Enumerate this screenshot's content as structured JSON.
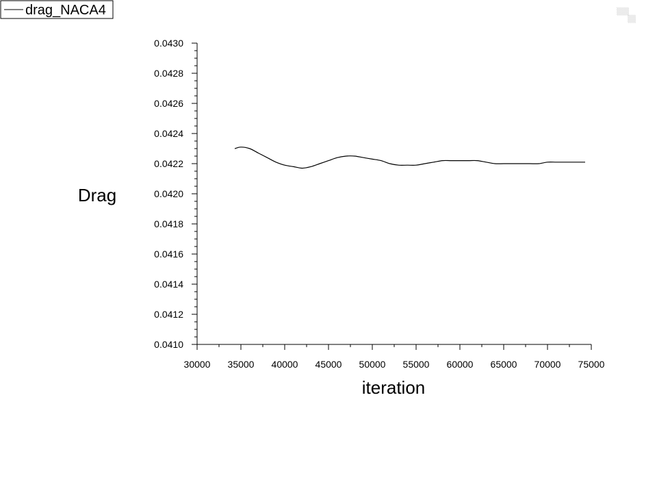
{
  "chart_data": {
    "type": "line",
    "title": "",
    "xlabel": "iteration",
    "ylabel": "Drag",
    "xlim": [
      30000,
      75000
    ],
    "ylim": [
      0.041,
      0.043
    ],
    "x_ticks": [
      "30000",
      "35000",
      "40000",
      "45000",
      "50000",
      "55000",
      "60000",
      "65000",
      "70000",
      "75000"
    ],
    "y_ticks": [
      "0.0410",
      "0.0412",
      "0.0414",
      "0.0416",
      "0.0418",
      "0.0420",
      "0.0422",
      "0.0424",
      "0.0426",
      "0.0428",
      "0.0430"
    ],
    "grid": false,
    "legend_position": "top-left",
    "series": [
      {
        "name": "drag_NACA4",
        "color": "#000000",
        "x": [
          34300,
          35000,
          36000,
          37000,
          38000,
          39000,
          40000,
          41000,
          42000,
          43000,
          44000,
          45000,
          46000,
          47000,
          48000,
          49000,
          50000,
          51000,
          52000,
          53000,
          54000,
          55000,
          56000,
          57000,
          58000,
          59000,
          60000,
          61000,
          62000,
          63000,
          64000,
          65000,
          66000,
          67000,
          68000,
          69000,
          70000,
          71000,
          72000,
          73000,
          74300
        ],
        "y": [
          0.0423,
          0.04231,
          0.0423,
          0.04227,
          0.04224,
          0.04221,
          0.04219,
          0.04218,
          0.04217,
          0.04218,
          0.0422,
          0.04222,
          0.04224,
          0.04225,
          0.04225,
          0.04224,
          0.04223,
          0.04222,
          0.0422,
          0.04219,
          0.04219,
          0.04219,
          0.0422,
          0.04221,
          0.04222,
          0.04222,
          0.04222,
          0.04222,
          0.04222,
          0.04221,
          0.0422,
          0.0422,
          0.0422,
          0.0422,
          0.0422,
          0.0422,
          0.04221,
          0.04221,
          0.04221,
          0.04221,
          0.04221
        ]
      }
    ]
  }
}
